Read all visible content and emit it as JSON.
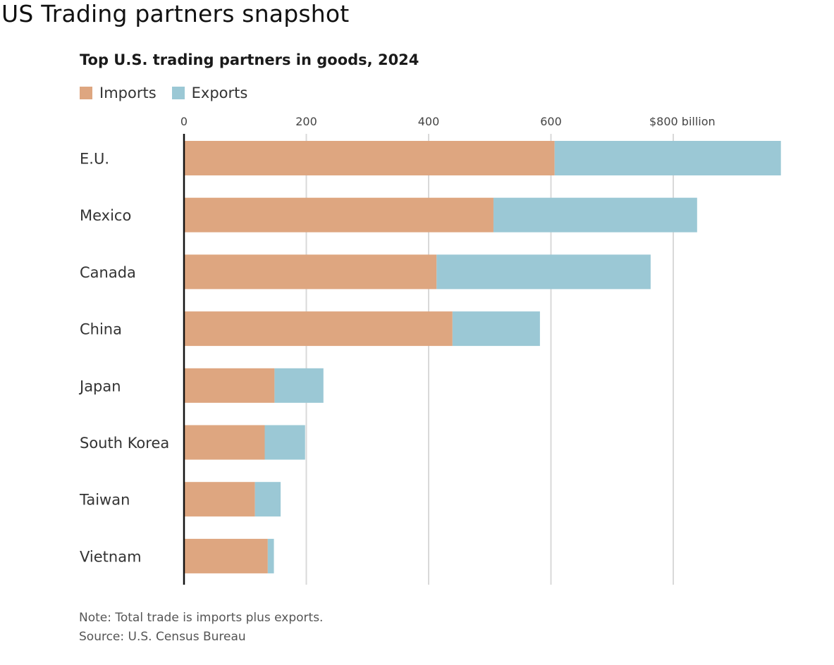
{
  "page_heading": "US Trading partners snapshot",
  "colors": {
    "imports": "#dea680",
    "exports": "#9bc8d5",
    "grid": "#d9d9d9",
    "axis": "#111111",
    "tick_text": "#444444",
    "category_text": "#333333"
  },
  "chart_data": {
    "type": "bar",
    "orientation": "horizontal",
    "stacked": true,
    "title": "Top U.S. trading partners in goods, 2024",
    "categories": [
      "E.U.",
      "Mexico",
      "Canada",
      "China",
      "Japan",
      "South Korea",
      "Taiwan",
      "Vietnam"
    ],
    "series": [
      {
        "name": "Imports",
        "values": [
          606,
          506,
          413,
          439,
          148,
          132,
          116,
          137
        ]
      },
      {
        "name": "Exports",
        "values": [
          370,
          333,
          350,
          143,
          80,
          66,
          42,
          10
        ]
      }
    ],
    "x_ticks": [
      0,
      200,
      400,
      600,
      800
    ],
    "x_tick_labels": [
      "0",
      "200",
      "400",
      "600",
      "$800 billion"
    ],
    "xlim": [
      0,
      980
    ],
    "grid": true,
    "legend_position": "top-left"
  },
  "notes": [
    "Note: Total trade is imports plus exports.",
    "Source: U.S. Census Bureau"
  ]
}
